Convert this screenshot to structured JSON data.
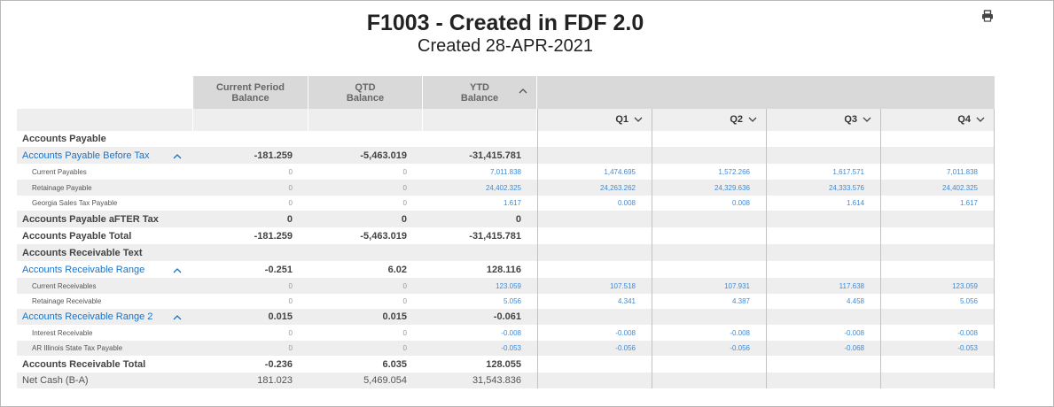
{
  "report": {
    "title": "F1003 - Created in FDF 2.0",
    "subtitle": "Created 28-APR-2021",
    "print_icon": "print-icon"
  },
  "headers": {
    "current_period": [
      "Current Period",
      "Balance"
    ],
    "qtd": [
      "QTD",
      "Balance"
    ],
    "ytd": [
      "YTD",
      "Balance"
    ],
    "quarters": [
      "Q1",
      "Q2",
      "Q3",
      "Q4"
    ]
  },
  "rows": [
    {
      "label": "Accounts Payable",
      "style": "bold",
      "shade": false,
      "cp": "",
      "qtd": "",
      "ytd": "",
      "q": [
        "",
        "",
        "",
        ""
      ]
    },
    {
      "label": "Accounts Payable Before Tax",
      "style": "link",
      "collapsible": true,
      "shade": true,
      "cp": "-181.259",
      "qtd": "-5,463.019",
      "ytd": "-31,415.781",
      "q": [
        "",
        "",
        "",
        ""
      ]
    },
    {
      "label": "Current Payables",
      "style": "small",
      "shade": false,
      "cp": "0",
      "qtd": "0",
      "ytd": "7,011.838",
      "q": [
        "1,474.695",
        "1,572.266",
        "1,617.571",
        "7,011.838"
      ]
    },
    {
      "label": "Retainage Payable",
      "style": "small",
      "shade": true,
      "cp": "0",
      "qtd": "0",
      "ytd": "24,402.325",
      "q": [
        "24,263.262",
        "24,329.636",
        "24,333.576",
        "24,402.325"
      ]
    },
    {
      "label": "Georgia Sales Tax Payable",
      "style": "small",
      "shade": false,
      "cp": "0",
      "qtd": "0",
      "ytd": "1.617",
      "q": [
        "0.008",
        "0.008",
        "1.614",
        "1.617"
      ]
    },
    {
      "label": "Accounts Payable aFTER Tax",
      "style": "bold",
      "shade": true,
      "cp": "0",
      "qtd": "0",
      "ytd": "0",
      "q": [
        "",
        "",
        "",
        ""
      ]
    },
    {
      "label": "Accounts Payable Total",
      "style": "bold",
      "shade": false,
      "cp": "-181.259",
      "qtd": "-5,463.019",
      "ytd": "-31,415.781",
      "q": [
        "",
        "",
        "",
        ""
      ]
    },
    {
      "label": "Accounts Receivable Text",
      "style": "bold",
      "shade": true,
      "cp": "",
      "qtd": "",
      "ytd": "",
      "q": [
        "",
        "",
        "",
        ""
      ]
    },
    {
      "label": "Accounts Receivable Range",
      "style": "link",
      "collapsible": true,
      "shade": false,
      "cp": "-0.251",
      "qtd": "6.02",
      "ytd": "128.116",
      "q": [
        "",
        "",
        "",
        ""
      ]
    },
    {
      "label": "Current Receivables",
      "style": "small",
      "shade": true,
      "cp": "0",
      "qtd": "0",
      "ytd": "123.059",
      "q": [
        "107.518",
        "107.931",
        "117.638",
        "123.059"
      ]
    },
    {
      "label": "Retainage Receivable",
      "style": "small",
      "shade": false,
      "cp": "0",
      "qtd": "0",
      "ytd": "5.056",
      "q": [
        "4.341",
        "4.387",
        "4.458",
        "5.056"
      ]
    },
    {
      "label": "Accounts Receivable Range 2",
      "style": "link",
      "collapsible": true,
      "shade": true,
      "cp": "0.015",
      "qtd": "0.015",
      "ytd": "-0.061",
      "q": [
        "",
        "",
        "",
        ""
      ]
    },
    {
      "label": "Interest Receivable",
      "style": "small",
      "shade": false,
      "cp": "0",
      "qtd": "0",
      "ytd": "-0.008",
      "q": [
        "-0.008",
        "-0.008",
        "-0.008",
        "-0.008"
      ]
    },
    {
      "label": "AR Illinois State Tax Payable",
      "style": "small",
      "shade": true,
      "cp": "0",
      "qtd": "0",
      "ytd": "-0.053",
      "q": [
        "-0.056",
        "-0.056",
        "-0.068",
        "-0.053"
      ]
    },
    {
      "label": "Accounts Receivable Total",
      "style": "bold",
      "shade": false,
      "cp": "-0.236",
      "qtd": "6.035",
      "ytd": "128.055",
      "q": [
        "",
        "",
        "",
        ""
      ]
    },
    {
      "label": "Net Cash (B-A)",
      "style": "normal",
      "shade": true,
      "cp": "181.023",
      "qtd": "5,469.054",
      "ytd": "31,543.836",
      "q": [
        "",
        "",
        "",
        ""
      ]
    }
  ],
  "colors": {
    "link": "#1a73c8",
    "header_bg": "#d9d9d9",
    "row_shade": "#eeeeee"
  }
}
